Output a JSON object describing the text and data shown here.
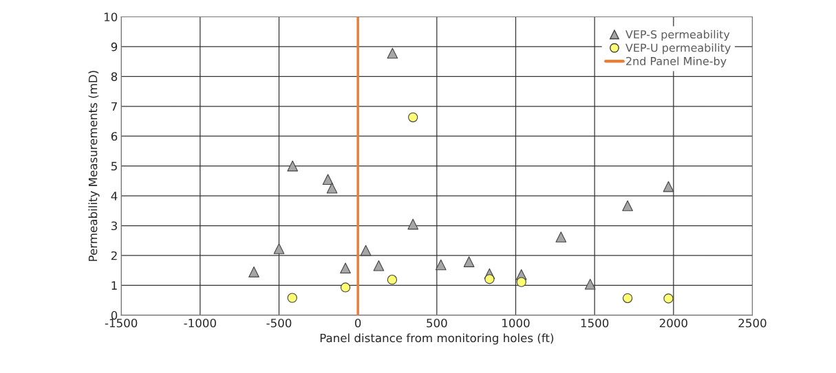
{
  "chart_data": {
    "type": "scatter",
    "xlabel": "Panel distance from monitoring holes (ft)",
    "ylabel": "Permeability Measurements (mD)",
    "xlim": [
      -1500,
      2500
    ],
    "xticks": [
      -1500,
      -1000,
      -500,
      0,
      500,
      1000,
      1500,
      2000,
      2500
    ],
    "ylim": [
      0,
      10
    ],
    "yticks": [
      0,
      1,
      2,
      3,
      4,
      5,
      6,
      7,
      8,
      9,
      10
    ],
    "grid": true,
    "legend": "top right",
    "series": [
      {
        "name": "VEP-S permeability",
        "color": "#a6a6a6",
        "marker": "triangle",
        "x": [
          -659,
          -500,
          -414,
          -190,
          -164,
          -79,
          50,
          132,
          219,
          349,
          526,
          704,
          834,
          1036,
          1287,
          1472,
          1709,
          1968
        ],
        "values": [
          1.45,
          2.23,
          5.0,
          4.55,
          4.26,
          1.58,
          2.17,
          1.66,
          8.78,
          3.05,
          1.69,
          1.79,
          1.39,
          1.36,
          2.62,
          1.04,
          3.67,
          4.31
        ]
      },
      {
        "name": "VEP-U permeability",
        "color": "#ffff75",
        "marker": "circle",
        "x": [
          -416,
          -79,
          217,
          349,
          834,
          1036,
          1709,
          1968
        ],
        "values": [
          0.58,
          0.93,
          1.19,
          6.63,
          1.21,
          1.11,
          0.57,
          0.56
        ]
      },
      {
        "name": "2nd Panel Mine-by",
        "type": "line",
        "color": "#ed7d31",
        "marker": "none",
        "x": [
          0,
          0
        ],
        "values": [
          0,
          10
        ]
      }
    ]
  }
}
